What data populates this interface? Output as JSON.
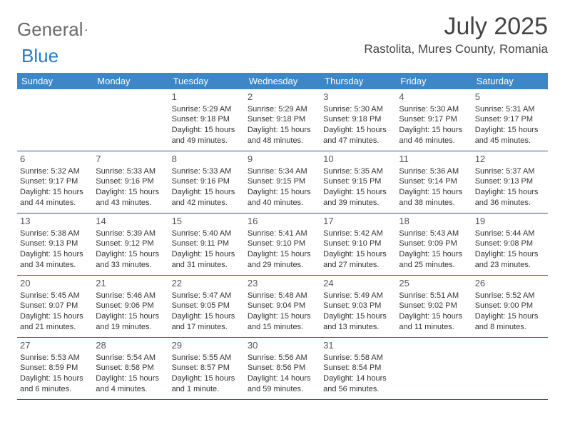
{
  "logo": {
    "general": "General",
    "blue": "Blue"
  },
  "title": "July 2025",
  "location": "Rastolita, Mures County, Romania",
  "colors": {
    "header_bg": "#3d87c7",
    "header_text": "#ffffff",
    "rule": "#2b5a8a",
    "body_text": "#333333",
    "logo_gray": "#6a6a6a",
    "logo_blue": "#2b7bbd"
  },
  "weekdays": [
    "Sunday",
    "Monday",
    "Tuesday",
    "Wednesday",
    "Thursday",
    "Friday",
    "Saturday"
  ],
  "weeks": [
    [
      null,
      null,
      {
        "n": "1",
        "sr": "5:29 AM",
        "ss": "9:18 PM",
        "dl": "15 hours and 49 minutes."
      },
      {
        "n": "2",
        "sr": "5:29 AM",
        "ss": "9:18 PM",
        "dl": "15 hours and 48 minutes."
      },
      {
        "n": "3",
        "sr": "5:30 AM",
        "ss": "9:18 PM",
        "dl": "15 hours and 47 minutes."
      },
      {
        "n": "4",
        "sr": "5:30 AM",
        "ss": "9:17 PM",
        "dl": "15 hours and 46 minutes."
      },
      {
        "n": "5",
        "sr": "5:31 AM",
        "ss": "9:17 PM",
        "dl": "15 hours and 45 minutes."
      }
    ],
    [
      {
        "n": "6",
        "sr": "5:32 AM",
        "ss": "9:17 PM",
        "dl": "15 hours and 44 minutes."
      },
      {
        "n": "7",
        "sr": "5:33 AM",
        "ss": "9:16 PM",
        "dl": "15 hours and 43 minutes."
      },
      {
        "n": "8",
        "sr": "5:33 AM",
        "ss": "9:16 PM",
        "dl": "15 hours and 42 minutes."
      },
      {
        "n": "9",
        "sr": "5:34 AM",
        "ss": "9:15 PM",
        "dl": "15 hours and 40 minutes."
      },
      {
        "n": "10",
        "sr": "5:35 AM",
        "ss": "9:15 PM",
        "dl": "15 hours and 39 minutes."
      },
      {
        "n": "11",
        "sr": "5:36 AM",
        "ss": "9:14 PM",
        "dl": "15 hours and 38 minutes."
      },
      {
        "n": "12",
        "sr": "5:37 AM",
        "ss": "9:13 PM",
        "dl": "15 hours and 36 minutes."
      }
    ],
    [
      {
        "n": "13",
        "sr": "5:38 AM",
        "ss": "9:13 PM",
        "dl": "15 hours and 34 minutes."
      },
      {
        "n": "14",
        "sr": "5:39 AM",
        "ss": "9:12 PM",
        "dl": "15 hours and 33 minutes."
      },
      {
        "n": "15",
        "sr": "5:40 AM",
        "ss": "9:11 PM",
        "dl": "15 hours and 31 minutes."
      },
      {
        "n": "16",
        "sr": "5:41 AM",
        "ss": "9:10 PM",
        "dl": "15 hours and 29 minutes."
      },
      {
        "n": "17",
        "sr": "5:42 AM",
        "ss": "9:10 PM",
        "dl": "15 hours and 27 minutes."
      },
      {
        "n": "18",
        "sr": "5:43 AM",
        "ss": "9:09 PM",
        "dl": "15 hours and 25 minutes."
      },
      {
        "n": "19",
        "sr": "5:44 AM",
        "ss": "9:08 PM",
        "dl": "15 hours and 23 minutes."
      }
    ],
    [
      {
        "n": "20",
        "sr": "5:45 AM",
        "ss": "9:07 PM",
        "dl": "15 hours and 21 minutes."
      },
      {
        "n": "21",
        "sr": "5:46 AM",
        "ss": "9:06 PM",
        "dl": "15 hours and 19 minutes."
      },
      {
        "n": "22",
        "sr": "5:47 AM",
        "ss": "9:05 PM",
        "dl": "15 hours and 17 minutes."
      },
      {
        "n": "23",
        "sr": "5:48 AM",
        "ss": "9:04 PM",
        "dl": "15 hours and 15 minutes."
      },
      {
        "n": "24",
        "sr": "5:49 AM",
        "ss": "9:03 PM",
        "dl": "15 hours and 13 minutes."
      },
      {
        "n": "25",
        "sr": "5:51 AM",
        "ss": "9:02 PM",
        "dl": "15 hours and 11 minutes."
      },
      {
        "n": "26",
        "sr": "5:52 AM",
        "ss": "9:00 PM",
        "dl": "15 hours and 8 minutes."
      }
    ],
    [
      {
        "n": "27",
        "sr": "5:53 AM",
        "ss": "8:59 PM",
        "dl": "15 hours and 6 minutes."
      },
      {
        "n": "28",
        "sr": "5:54 AM",
        "ss": "8:58 PM",
        "dl": "15 hours and 4 minutes."
      },
      {
        "n": "29",
        "sr": "5:55 AM",
        "ss": "8:57 PM",
        "dl": "15 hours and 1 minute."
      },
      {
        "n": "30",
        "sr": "5:56 AM",
        "ss": "8:56 PM",
        "dl": "14 hours and 59 minutes."
      },
      {
        "n": "31",
        "sr": "5:58 AM",
        "ss": "8:54 PM",
        "dl": "14 hours and 56 minutes."
      },
      null,
      null
    ]
  ],
  "labels": {
    "sunrise": "Sunrise:",
    "sunset": "Sunset:",
    "daylight": "Daylight:"
  }
}
